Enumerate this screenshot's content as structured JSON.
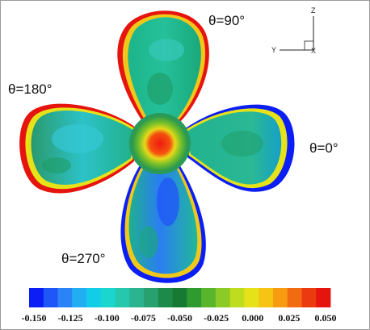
{
  "labels": {
    "theta_90": "θ=90°",
    "theta_180": "θ=180°",
    "theta_0": "θ=0°",
    "theta_270": "θ=270°"
  },
  "axes": {
    "z": "Z",
    "y": "Y",
    "x": "X"
  },
  "colorbar": {
    "ticks": [
      "-0.150",
      "-0.125",
      "-0.100",
      "-0.075",
      "-0.050",
      "-0.025",
      "0.000",
      "0.025",
      "0.050"
    ],
    "colors": [
      "#0a1ef5",
      "#1f56f7",
      "#2a84f7",
      "#22aef2",
      "#12cde8",
      "#1ad6cf",
      "#25c8ad",
      "#2ab38e",
      "#28a06f",
      "#1d8a4a",
      "#177a33",
      "#2f9a30",
      "#58b52c",
      "#8ccb27",
      "#bfdc1f",
      "#e6e21a",
      "#f6c514",
      "#f79b12",
      "#f36b10",
      "#ec3a10",
      "#e6140f"
    ]
  }
}
